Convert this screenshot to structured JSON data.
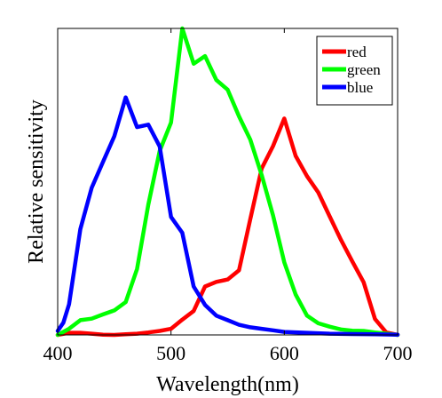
{
  "chart_data": {
    "type": "line",
    "title": "",
    "xlabel": "Wavelength(nm)",
    "ylabel": "Relative sensitivity",
    "xlim": [
      400,
      700
    ],
    "ylim": [
      0,
      1
    ],
    "xticks": [
      400,
      500,
      600,
      700
    ],
    "xtick_labels": [
      "400",
      "500",
      "600",
      "700"
    ],
    "yticks": [],
    "grid": false,
    "legend_position": "top-right",
    "series": [
      {
        "name": "red",
        "color": "#ff0000",
        "x": [
          400,
          410,
          420,
          430,
          440,
          450,
          460,
          470,
          480,
          490,
          500,
          510,
          520,
          530,
          540,
          550,
          560,
          570,
          580,
          590,
          600,
          610,
          620,
          630,
          640,
          650,
          660,
          670,
          680,
          690,
          700
        ],
        "y": [
          0,
          0.007,
          0.007,
          0.004,
          0.001,
          0,
          0.002,
          0.004,
          0.008,
          0.013,
          0.02,
          0.05,
          0.078,
          0.158,
          0.173,
          0.181,
          0.211,
          0.378,
          0.543,
          0.616,
          0.706,
          0.584,
          0.518,
          0.465,
          0.387,
          0.31,
          0.24,
          0.172,
          0.052,
          0.008,
          0
        ]
      },
      {
        "name": "green",
        "color": "#00ff00",
        "x": [
          400,
          410,
          420,
          430,
          440,
          450,
          460,
          470,
          480,
          490,
          500,
          510,
          520,
          530,
          540,
          550,
          560,
          570,
          580,
          590,
          600,
          610,
          620,
          630,
          640,
          650,
          660,
          670,
          680,
          690,
          700
        ],
        "y": [
          0,
          0.02,
          0.048,
          0.053,
          0.067,
          0.08,
          0.107,
          0.215,
          0.425,
          0.6,
          0.693,
          1.0,
          0.885,
          0.91,
          0.832,
          0.8,
          0.713,
          0.637,
          0.522,
          0.39,
          0.237,
          0.132,
          0.063,
          0.038,
          0.027,
          0.018,
          0.014,
          0.013,
          0.008,
          0.004,
          0
        ]
      },
      {
        "name": "blue",
        "color": "#0000ff",
        "x": [
          400,
          405,
          410,
          420,
          430,
          440,
          450,
          460,
          470,
          480,
          490,
          500,
          510,
          520,
          530,
          540,
          550,
          560,
          570,
          580,
          590,
          600,
          620,
          640,
          660,
          680,
          700
        ],
        "y": [
          0.013,
          0.04,
          0.1,
          0.345,
          0.48,
          0.565,
          0.648,
          0.775,
          0.678,
          0.686,
          0.615,
          0.385,
          0.333,
          0.158,
          0.098,
          0.063,
          0.048,
          0.033,
          0.025,
          0.02,
          0.015,
          0.01,
          0.007,
          0.004,
          0.003,
          0.002,
          0.001
        ]
      }
    ]
  }
}
